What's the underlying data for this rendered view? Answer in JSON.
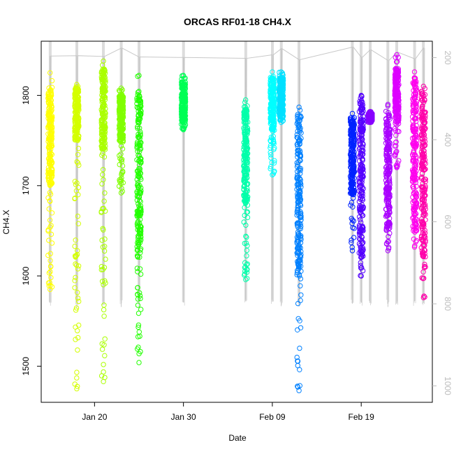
{
  "chart_data": {
    "type": "scatter",
    "title": "ORCAS RF01-18 CH4.X",
    "xlabel": "Date",
    "ylabel": "CH4.X",
    "x_axis": {
      "type": "date",
      "range": [
        "2016-01-14",
        "2016-02-27"
      ],
      "ticks": [
        {
          "date": "2016-01-20",
          "label": "Jan 20"
        },
        {
          "date": "2016-01-30",
          "label": "Jan 30"
        },
        {
          "date": "2016-02-09",
          "label": "Feb 09"
        },
        {
          "date": "2016-02-19",
          "label": "Feb 19"
        }
      ]
    },
    "y_axis": {
      "range": [
        1460,
        1860
      ],
      "ticks": [
        1500,
        1600,
        1700,
        1800
      ]
    },
    "y2_axis": {
      "quantity": "pressure",
      "inverted": true,
      "range": [
        1040,
        160
      ],
      "ticks": [
        200,
        400,
        600,
        800,
        1000
      ],
      "color": "#bdbdbd"
    },
    "grid": false,
    "legend": "none",
    "series": [
      {
        "date": "2016-01-15",
        "color": "#ffff00",
        "ymin": 1585,
        "ymax": 1825,
        "core_min": 1700,
        "core_max": 1810
      },
      {
        "date": "2016-01-18",
        "color": "#d4ff00",
        "ymin": 1475,
        "ymax": 1812,
        "core_min": 1750,
        "core_max": 1810
      },
      {
        "date": "2016-01-21",
        "color": "#aaff00",
        "ymin": 1483,
        "ymax": 1838,
        "core_min": 1740,
        "core_max": 1830
      },
      {
        "date": "2016-01-23",
        "color": "#80ff00",
        "ymin": 1692,
        "ymax": 1808,
        "core_min": 1750,
        "core_max": 1800
      },
      {
        "date": "2016-01-25",
        "color": "#22ff00",
        "ymin": 1504,
        "ymax": 1822,
        "core_min": 1620,
        "core_max": 1805
      },
      {
        "date": "2016-01-30",
        "color": "#00ff55",
        "ymin": 1762,
        "ymax": 1822,
        "core_min": 1770,
        "core_max": 1815
      },
      {
        "date": "2016-02-06",
        "color": "#00ffaa",
        "ymin": 1596,
        "ymax": 1795,
        "core_min": 1680,
        "core_max": 1790
      },
      {
        "date": "2016-02-09",
        "color": "#00ffff",
        "ymin": 1712,
        "ymax": 1826,
        "core_min": 1760,
        "core_max": 1820
      },
      {
        "date": "2016-02-10",
        "color": "#00e0ff",
        "ymin": 1770,
        "ymax": 1826,
        "core_min": 1775,
        "core_max": 1820
      },
      {
        "date": "2016-02-12",
        "color": "#0080ff",
        "ymin": 1473,
        "ymax": 1787,
        "core_min": 1600,
        "core_max": 1785
      },
      {
        "date": "2016-02-18",
        "color": "#0022ff",
        "ymin": 1628,
        "ymax": 1780,
        "core_min": 1690,
        "core_max": 1775
      },
      {
        "date": "2016-02-19",
        "color": "#5500ff",
        "ymin": 1600,
        "ymax": 1800,
        "core_min": 1620,
        "core_max": 1795
      },
      {
        "date": "2016-02-20",
        "color": "#8800ff",
        "ymin": 1770,
        "ymax": 1782,
        "core_min": 1772,
        "core_max": 1780
      },
      {
        "date": "2016-02-22",
        "color": "#aa00ff",
        "ymin": 1628,
        "ymax": 1790,
        "core_min": 1650,
        "core_max": 1780
      },
      {
        "date": "2016-02-23",
        "color": "#dd00ff",
        "ymin": 1720,
        "ymax": 1845,
        "core_min": 1770,
        "core_max": 1830
      },
      {
        "date": "2016-02-25",
        "color": "#ff00ee",
        "ymin": 1632,
        "ymax": 1826,
        "core_min": 1650,
        "core_max": 1820
      },
      {
        "date": "2016-02-26",
        "color": "#ff00aa",
        "ymin": 1576,
        "ymax": 1810,
        "core_min": 1620,
        "core_max": 1805
      }
    ]
  }
}
